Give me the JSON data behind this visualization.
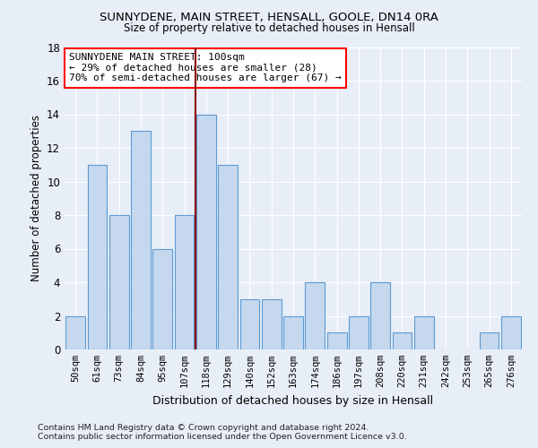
{
  "title1": "SUNNYDENE, MAIN STREET, HENSALL, GOOLE, DN14 0RA",
  "title2": "Size of property relative to detached houses in Hensall",
  "xlabel": "Distribution of detached houses by size in Hensall",
  "ylabel": "Number of detached properties",
  "categories": [
    "50sqm",
    "61sqm",
    "73sqm",
    "84sqm",
    "95sqm",
    "107sqm",
    "118sqm",
    "129sqm",
    "140sqm",
    "152sqm",
    "163sqm",
    "174sqm",
    "186sqm",
    "197sqm",
    "208sqm",
    "220sqm",
    "231sqm",
    "242sqm",
    "253sqm",
    "265sqm",
    "276sqm"
  ],
  "values": [
    2,
    11,
    8,
    13,
    6,
    8,
    14,
    11,
    3,
    3,
    2,
    4,
    1,
    2,
    4,
    1,
    2,
    0,
    0,
    1,
    2
  ],
  "bar_color": "#c5d8ed",
  "bar_edge_color": "#5b9bd5",
  "red_line_index": 5,
  "annotation_line1": "SUNNYDENE MAIN STREET: 100sqm",
  "annotation_line2": "← 29% of detached houses are smaller (28)",
  "annotation_line3": "70% of semi-detached houses are larger (67) →",
  "footer": "Contains HM Land Registry data © Crown copyright and database right 2024.\nContains public sector information licensed under the Open Government Licence v3.0.",
  "ylim": [
    0,
    18
  ],
  "yticks": [
    0,
    2,
    4,
    6,
    8,
    10,
    12,
    14,
    16,
    18
  ],
  "bg_color": "#e8eef7",
  "grid_color": "#ffffff"
}
